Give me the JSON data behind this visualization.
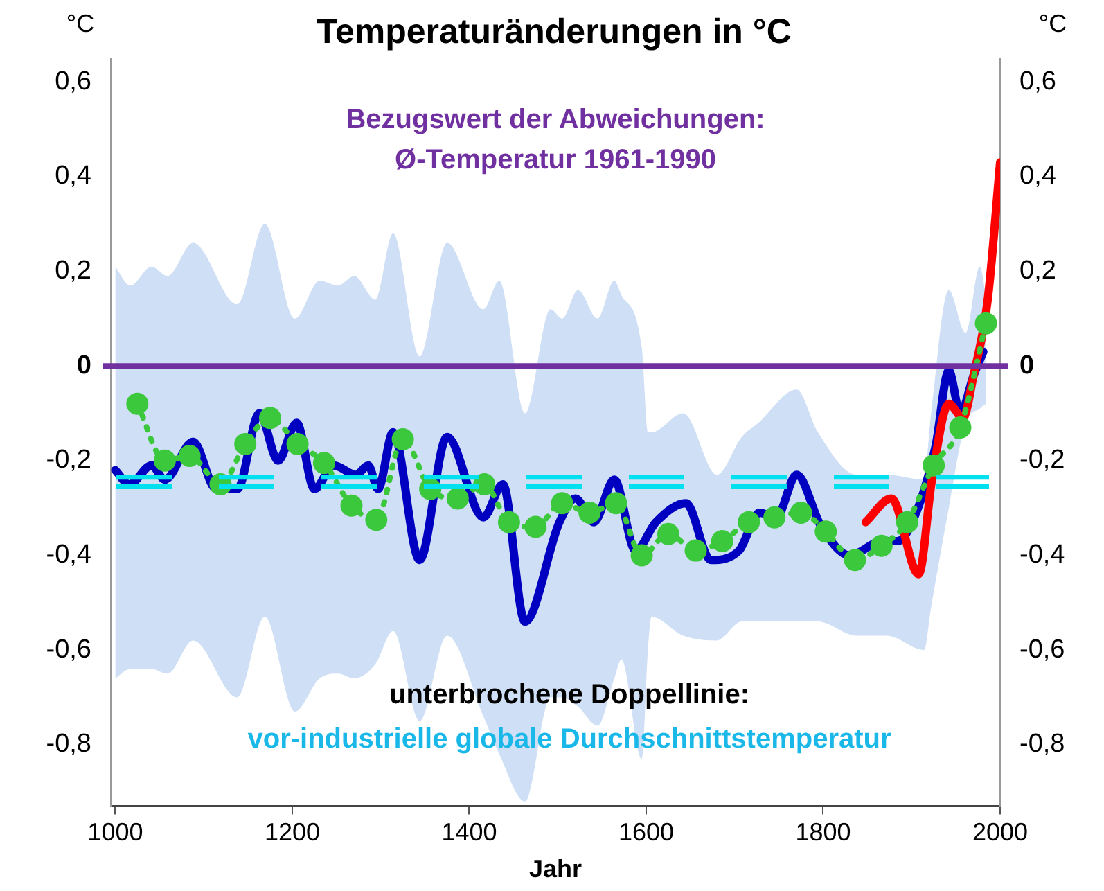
{
  "chart_data": {
    "type": "line",
    "title": "Temperaturänderungen in °C",
    "xlabel": "Jahr",
    "ylabel": "°C",
    "y2label": "°C",
    "xlim": [
      995,
      2000
    ],
    "xticks": [
      1000,
      1200,
      1400,
      1600,
      1800,
      2000
    ],
    "ylim": [
      -0.93,
      0.65
    ],
    "yticks": [
      {
        "value": 0.6,
        "label": "0,6"
      },
      {
        "value": 0.4,
        "label": "0,4"
      },
      {
        "value": 0.2,
        "label": "0,2"
      },
      0,
      {
        "value": -0.2,
        "label": "-0,2"
      },
      {
        "value": -0.4,
        "label": "-0,4"
      },
      {
        "value": -0.6,
        "label": "-0,6"
      },
      {
        "value": -0.8,
        "label": "-0,8"
      }
    ],
    "y2lim": [
      -0.93,
      0.65
    ],
    "y2ticks": [
      {
        "value": 0.6,
        "label": "0,6"
      },
      {
        "value": 0.4,
        "label": "0,4"
      },
      {
        "value": 0.2,
        "label": "0,2"
      },
      0,
      {
        "value": -0.2,
        "label": "-0,2"
      },
      {
        "value": -0.4,
        "label": "-0,4"
      },
      {
        "value": -0.6,
        "label": "-0,6"
      },
      {
        "value": -0.8,
        "label": "-0,8"
      }
    ],
    "grid": false,
    "legend": false,
    "series": [
      {
        "type": "area",
        "color": "#cfdff5",
        "x": [
          1000,
          1017,
          1041,
          1059,
          1088,
          1138,
          1169,
          1203,
          1231,
          1252,
          1270,
          1294,
          1314,
          1344,
          1375,
          1416,
          1434,
          1463,
          1492,
          1505,
          1523,
          1545,
          1564,
          1572,
          1595,
          1602,
          1606,
          1642,
          1680,
          1708,
          1727,
          1770,
          1794,
          1838,
          1872,
          1914,
          1922,
          1942,
          1961,
          1977,
          1984
        ],
        "values": [
          null,
          null,
          null,
          null,
          null,
          null,
          null,
          null,
          null,
          null,
          null,
          null,
          null,
          null,
          null,
          null,
          null,
          null,
          null,
          null,
          null,
          null,
          null,
          null,
          null,
          null,
          null,
          null,
          null,
          null,
          null,
          null,
          null,
          null,
          null,
          null,
          null,
          null,
          null,
          null,
          null
        ],
        "upper": [
          0.21,
          0.17,
          0.21,
          0.19,
          0.26,
          0.13,
          0.3,
          0.1,
          0.18,
          0.17,
          0.19,
          0.14,
          0.28,
          0.02,
          0.26,
          0.12,
          0.18,
          -0.1,
          0.12,
          0.1,
          0.16,
          0.1,
          0.18,
          0.15,
          0.04,
          -0.14,
          -0.14,
          -0.1,
          -0.23,
          -0.15,
          -0.12,
          -0.05,
          -0.14,
          -0.23,
          -0.23,
          -0.24,
          -0.1,
          0.16,
          0.07,
          0.21,
          0.15
        ],
        "lower": [
          -0.66,
          -0.64,
          -0.64,
          -0.65,
          -0.58,
          -0.7,
          -0.53,
          -0.73,
          -0.66,
          -0.65,
          -0.66,
          -0.63,
          -0.56,
          -0.75,
          -0.57,
          -0.74,
          -0.82,
          -0.92,
          -0.7,
          -0.7,
          -0.72,
          -0.76,
          -0.66,
          -0.62,
          -0.83,
          -0.6,
          -0.53,
          -0.57,
          -0.58,
          -0.54,
          -0.54,
          -0.54,
          -0.54,
          -0.57,
          -0.57,
          -0.6,
          -0.51,
          -0.3,
          -0.12,
          -0.09,
          -0.08
        ]
      },
      {
        "type": "line",
        "color": "#0000c0",
        "marker": "none",
        "line_style": "solid",
        "x": [
          1000,
          1016,
          1041,
          1056,
          1088,
          1114,
          1138,
          1163,
          1184,
          1205,
          1225,
          1247,
          1272,
          1286,
          1297,
          1314,
          1344,
          1375,
          1416,
          1438,
          1463,
          1502,
          1520,
          1541,
          1564,
          1588,
          1611,
          1645,
          1673,
          1705,
          1728,
          1747,
          1770,
          1798,
          1830,
          1867,
          1884,
          1903,
          1927,
          1942,
          1955,
          1970,
          1981
        ],
        "values": [
          -0.22,
          -0.25,
          -0.21,
          -0.24,
          -0.16,
          -0.26,
          -0.26,
          -0.1,
          -0.2,
          -0.12,
          -0.26,
          -0.21,
          -0.23,
          -0.21,
          -0.26,
          -0.14,
          -0.41,
          -0.15,
          -0.32,
          -0.25,
          -0.54,
          -0.33,
          -0.28,
          -0.33,
          -0.24,
          -0.39,
          -0.33,
          -0.29,
          -0.41,
          -0.39,
          -0.31,
          -0.32,
          -0.23,
          -0.34,
          -0.4,
          -0.37,
          -0.37,
          -0.32,
          -0.17,
          -0.01,
          -0.1,
          -0.02,
          0.03
        ]
      },
      {
        "type": "line",
        "color": "#ff0000",
        "marker": "none",
        "line_style": "solid",
        "x": [
          1848,
          1877,
          1908,
          1923,
          1942,
          1958,
          1970,
          1986,
          2000
        ],
        "values": [
          -0.33,
          -0.28,
          -0.44,
          -0.24,
          -0.08,
          -0.11,
          -0.02,
          0.14,
          0.43
        ]
      },
      {
        "type": "line",
        "color": "#3cc83c",
        "marker": "circle",
        "line_style": "dotted",
        "x": [
          1025,
          1056,
          1084,
          1119,
          1147,
          1175,
          1206,
          1236,
          1267,
          1295,
          1325,
          1356,
          1387,
          1417,
          1445,
          1475,
          1505,
          1536,
          1566,
          1595,
          1625,
          1656,
          1686,
          1716,
          1745,
          1775,
          1803,
          1836,
          1866,
          1895,
          1925,
          1955,
          1984
        ],
        "values": [
          -0.08,
          -0.2,
          -0.19,
          -0.25,
          -0.165,
          -0.11,
          -0.165,
          -0.205,
          -0.295,
          -0.325,
          -0.155,
          -0.26,
          -0.28,
          -0.25,
          -0.33,
          -0.34,
          -0.29,
          -0.31,
          -0.29,
          -0.4,
          -0.355,
          -0.39,
          -0.37,
          -0.33,
          -0.32,
          -0.31,
          -0.35,
          -0.41,
          -0.38,
          -0.33,
          -0.21,
          -0.13,
          0.09
        ]
      }
    ],
    "ref_lines": [
      {
        "axis": "y",
        "value": 0,
        "color": "#7030a0",
        "line_style": "solid",
        "label": "Bezugswert der Abweichungen:\nØ-Temperatur 1961-1990"
      },
      {
        "axis": "y",
        "value": -0.235,
        "color": "#00e0ee",
        "line_style": "dashed"
      },
      {
        "axis": "y",
        "value": -0.255,
        "color": "#00e0ee",
        "line_style": "dashed",
        "label": "vor-industrielle globale Durchschnittstemperatur"
      }
    ],
    "annotations": [
      "unterbrochene Doppellinie:"
    ]
  }
}
